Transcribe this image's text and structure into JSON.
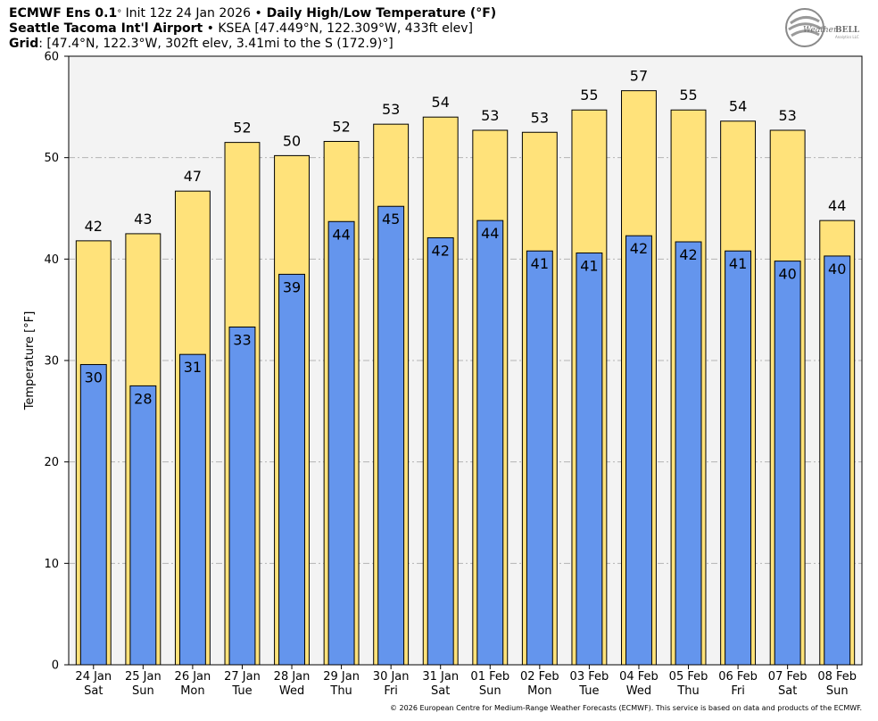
{
  "header": {
    "line1_model": "ECMWF Ens 0.1",
    "line1_deg": "°",
    "line1_init": " Init 12z 24 Jan 2026 ",
    "line1_bullet": "•",
    "line1_product": " Daily High/Low Temperature (°F)",
    "line2_station": "Seattle Tacoma Int'l Airport",
    "line2_bullet": " • ",
    "line2_details": "KSEA [47.449°N, 122.309°W, 433ft elev]",
    "line3_label": "Grid",
    "line3_details": ": [47.4°N, 122.3°W, 302ft elev, 3.41mi to the S (172.9)°]"
  },
  "logo": {
    "text_pre": "Weather",
    "text_post": "BELL",
    "sub": "Analytics LLC",
    "icon": "weatherbell-globe-icon"
  },
  "footer": "© 2026 European Centre for Medium-Range Weather Forecasts (ECMWF). This service is based on data and products of the ECMWF.",
  "colors": {
    "high_bar": "#ffe27a",
    "low_bar": "#6495ed",
    "plot_bg": "#f3f3f3",
    "grid": "#b4b4b4"
  },
  "chart_data": {
    "type": "bar",
    "ylabel": "Temperature [°F]",
    "ylim": [
      0,
      60
    ],
    "yticks": [
      0,
      10,
      20,
      30,
      40,
      50,
      60
    ],
    "grid": true,
    "categories": [
      "24 Jan",
      "25 Jan",
      "26 Jan",
      "27 Jan",
      "28 Jan",
      "29 Jan",
      "30 Jan",
      "31 Jan",
      "01 Feb",
      "02 Feb",
      "03 Feb",
      "04 Feb",
      "05 Feb",
      "06 Feb",
      "07 Feb",
      "08 Feb"
    ],
    "weekdays": [
      "Sat",
      "Sun",
      "Mon",
      "Tue",
      "Wed",
      "Thu",
      "Fri",
      "Sat",
      "Sun",
      "Mon",
      "Tue",
      "Wed",
      "Thu",
      "Fri",
      "Sat",
      "Sun"
    ],
    "series": [
      {
        "key": "high",
        "values": [
          42,
          43,
          47,
          52,
          50,
          52,
          53,
          54,
          53,
          53,
          55,
          57,
          55,
          54,
          53,
          44
        ],
        "exact": [
          41.8,
          42.5,
          46.7,
          51.5,
          50.2,
          51.6,
          53.3,
          54.0,
          52.7,
          52.5,
          54.7,
          56.6,
          54.7,
          53.6,
          52.7,
          43.8
        ]
      },
      {
        "key": "low",
        "values": [
          30,
          28,
          31,
          33,
          39,
          44,
          45,
          42,
          44,
          41,
          41,
          42,
          42,
          41,
          40,
          40
        ],
        "exact": [
          29.6,
          27.5,
          30.6,
          33.3,
          38.5,
          43.7,
          45.2,
          42.1,
          43.8,
          40.8,
          40.6,
          42.3,
          41.7,
          40.8,
          39.8,
          40.3
        ]
      }
    ]
  }
}
